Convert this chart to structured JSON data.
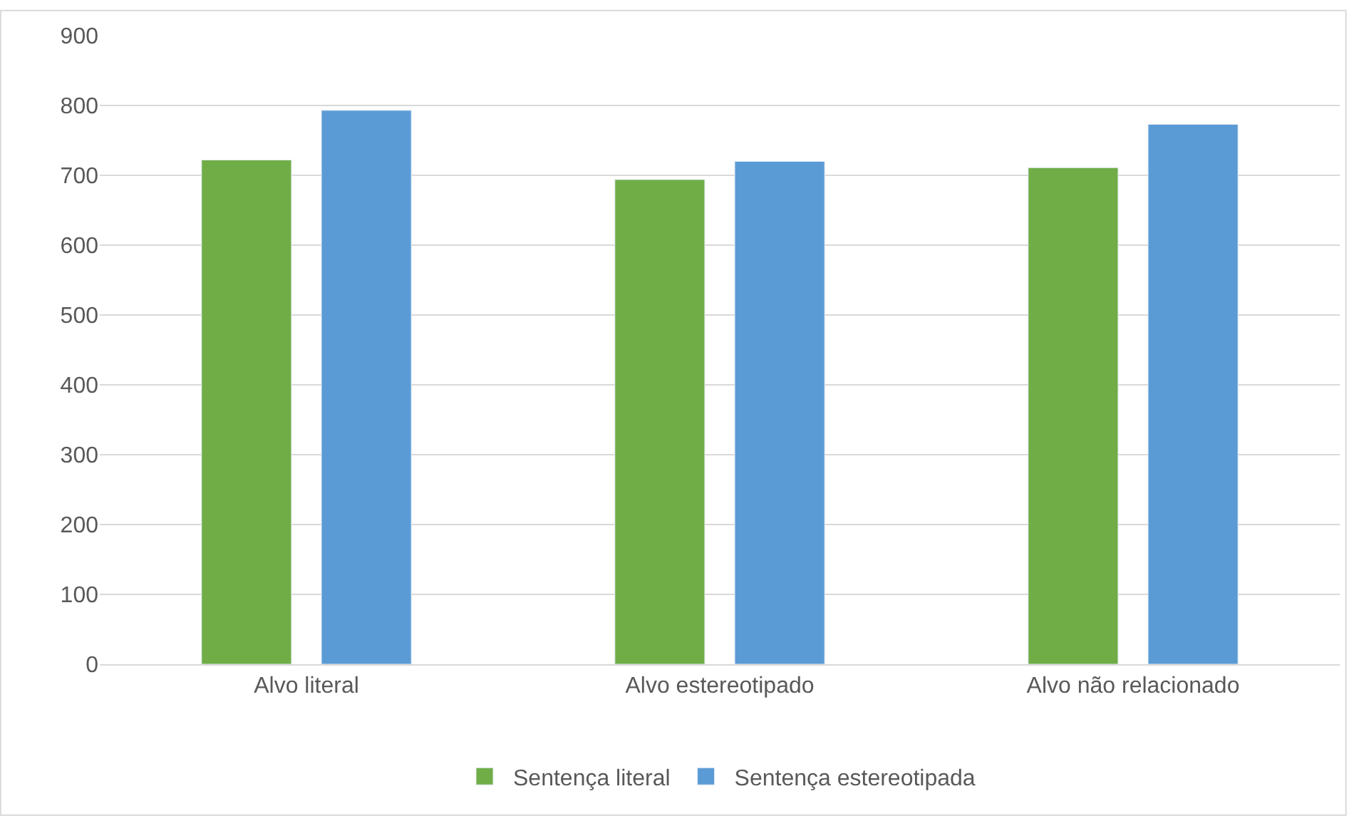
{
  "chart_data": {
    "type": "bar",
    "categories": [
      "Alvo literal",
      "Alvo estereotipado",
      "Alvo não relacionado"
    ],
    "series": [
      {
        "name": "Sentença literal",
        "color": "#70ad47",
        "values": [
          722,
          694,
          711
        ]
      },
      {
        "name": "Sentença estereotipada",
        "color": "#5b9bd5",
        "values": [
          793,
          720,
          773
        ]
      }
    ],
    "ylim": [
      0,
      900
    ],
    "yticks": [
      0,
      100,
      200,
      300,
      400,
      500,
      600,
      700,
      800,
      900
    ],
    "grid": "y",
    "legend": "bottom"
  }
}
